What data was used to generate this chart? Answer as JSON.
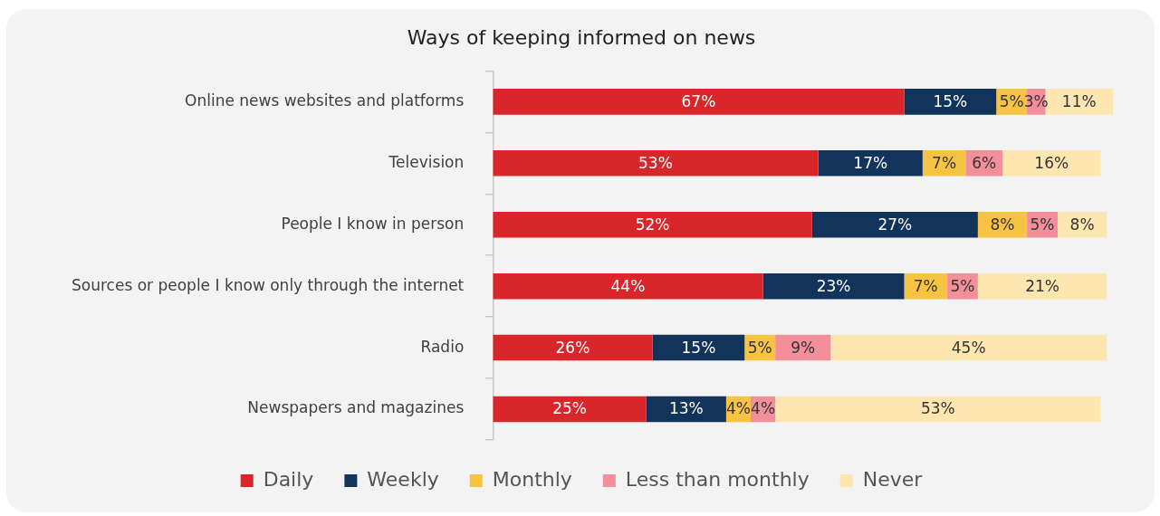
{
  "chart_data": {
    "type": "bar",
    "orientation": "horizontal",
    "stacked": true,
    "title": "Ways of keeping informed on news",
    "xlim": [
      0,
      101
    ],
    "tick_labels": "y",
    "legend": "bottom",
    "grid": false,
    "categories": [
      "Online news websites and platforms",
      "Television",
      "People I know in person",
      "Sources or people I know only through the internet",
      "Radio",
      "Newspapers and magazines"
    ],
    "series": [
      {
        "name": "Daily",
        "color": "#d9262a",
        "values": [
          67,
          53,
          52,
          44,
          26,
          25
        ],
        "value_labels": [
          "67%",
          "53%",
          "52%",
          "44%",
          "26%",
          "25%"
        ]
      },
      {
        "name": "Weekly",
        "color": "#12335a",
        "values": [
          15,
          17,
          27,
          23,
          15,
          13
        ],
        "value_labels": [
          "15%",
          "17%",
          "27%",
          "23%",
          "15%",
          "13%"
        ]
      },
      {
        "name": "Monthly",
        "color": "#f6c343",
        "values": [
          5,
          7,
          8,
          7,
          5,
          4
        ],
        "value_labels": [
          "5%",
          "7%",
          "8%",
          "7%",
          "5%",
          "4%"
        ]
      },
      {
        "name": "Less than monthly",
        "color": "#f28f9b",
        "values": [
          3,
          6,
          5,
          5,
          9,
          4
        ],
        "value_labels": [
          "3%",
          "6%",
          "5%",
          "5%",
          "9%",
          "4%"
        ]
      },
      {
        "name": "Never",
        "color": "#fde6b0",
        "values": [
          11,
          16,
          8,
          21,
          45,
          53
        ],
        "value_labels": [
          "11%",
          "16%",
          "8%",
          "21%",
          "45%",
          "53%"
        ]
      }
    ]
  }
}
